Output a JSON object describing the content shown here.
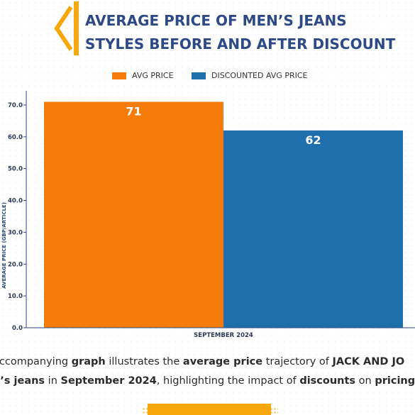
{
  "header": {
    "title_line1": "AVERAGE PRICE OF MEN’S JEANS",
    "title_line2": "STYLES BEFORE AND AFTER DISCOUNT"
  },
  "colors": {
    "accent": "#f6a70b",
    "title": "#2d4a86",
    "avg_price": "#f57c0b",
    "discounted_avg_price": "#1f6fad",
    "axis": "#2d4a86"
  },
  "chart_data": {
    "type": "bar",
    "categories": [
      "SEPTEMBER 2024"
    ],
    "series": [
      {
        "name": "AVG PRICE",
        "values": [
          71
        ]
      },
      {
        "name": "DISCOUNTED AVG PRICE",
        "values": [
          62
        ]
      }
    ],
    "data_labels": [
      "71",
      "62"
    ],
    "xlabel": "SEPTEMBER 2024",
    "ylabel": "AVERAGE PRICE (GBP/ARTICLE)",
    "ylim": [
      0,
      70
    ],
    "yticks": [
      "0.0",
      "10.0",
      "20.0",
      "30.0",
      "40.0",
      "50.0",
      "60.0",
      "70.0"
    ],
    "legend_position": "top-center",
    "grid": false
  },
  "description": {
    "parts": [
      {
        "text": "accompanying ",
        "bold": false
      },
      {
        "text": "graph",
        "bold": true
      },
      {
        "text": " illustrates the ",
        "bold": false
      },
      {
        "text": "average price",
        "bold": true
      },
      {
        "text": " trajectory of ",
        "bold": false
      },
      {
        "text": "JACK AND JO",
        "bold": true
      }
    ],
    "parts2": [
      {
        "text": "n’s jeans",
        "bold": true
      },
      {
        "text": " in ",
        "bold": false
      },
      {
        "text": "September 2024",
        "bold": true
      },
      {
        "text": ", highlighting the impact of ",
        "bold": false
      },
      {
        "text": "discounts",
        "bold": true
      },
      {
        "text": " on ",
        "bold": false
      },
      {
        "text": "pricing",
        "bold": true
      },
      {
        "text": ".",
        "bold": false
      }
    ]
  }
}
